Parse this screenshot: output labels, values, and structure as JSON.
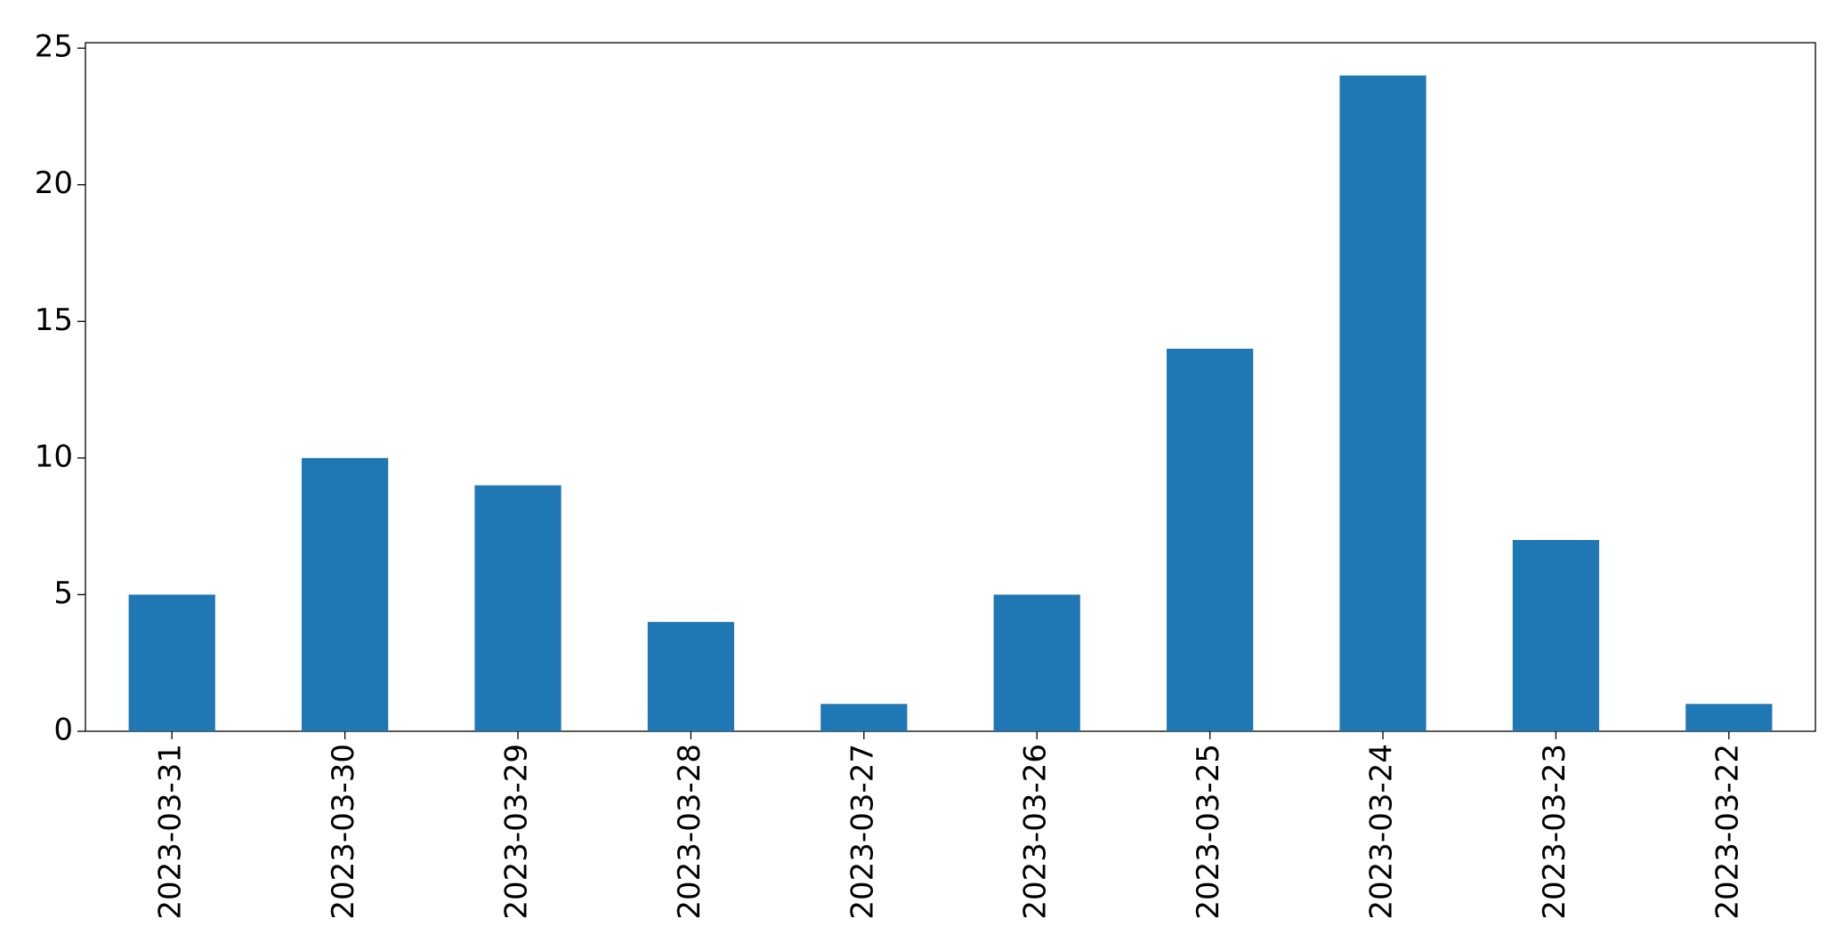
{
  "chart_data": {
    "type": "bar",
    "categories": [
      "2023-03-31",
      "2023-03-30",
      "2023-03-29",
      "2023-03-28",
      "2023-03-27",
      "2023-03-26",
      "2023-03-25",
      "2023-03-24",
      "2023-03-23",
      "2023-03-22"
    ],
    "values": [
      5,
      10,
      9,
      4,
      1,
      5,
      14,
      24,
      7,
      1
    ],
    "color": "#1f77b4",
    "ylim": [
      0,
      25.2
    ],
    "yticks": [
      0,
      5,
      10,
      15,
      20,
      25
    ],
    "grid": false
  }
}
